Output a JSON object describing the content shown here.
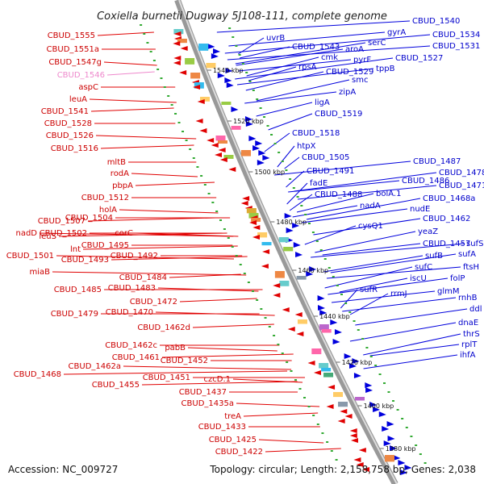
{
  "title": "Coxiella burnetii Dugway 5J108-111, complete genome",
  "footer": {
    "accession": "Accession: NC_009727",
    "summary": "Topology: circular; Length: 2,158,758 bp; Genes: 2,038"
  },
  "colors": {
    "forward": "#e00000",
    "reverse": "#0000dd",
    "backbone": "#999999",
    "dots": "#33aa33",
    "label_red": "#cc0000",
    "label_blue": "#0000cc",
    "label_pink": "#ee88cc"
  },
  "kbp_ticks": [
    "1540 kbp",
    "1520 kbp",
    "1500 kbp",
    "1480 kbp",
    "1460 kbp",
    "1440 kbp",
    "1420 kbp",
    "1400 kbp",
    "1380 kbp"
  ],
  "left_labels": [
    {
      "text": "CBUD_1555",
      "color": "red"
    },
    {
      "text": "CBUD_1551a",
      "color": "red"
    },
    {
      "text": "CBUD_1547g",
      "color": "red"
    },
    {
      "text": "CBUD_1546",
      "color": "pink"
    },
    {
      "text": "aspC",
      "color": "red"
    },
    {
      "text": "leuA",
      "color": "red"
    },
    {
      "text": "CBUD_1541",
      "color": "red"
    },
    {
      "text": "CBUD_1528",
      "color": "red"
    },
    {
      "text": "CBUD_1526",
      "color": "red"
    },
    {
      "text": "CBUD_1516",
      "color": "red"
    },
    {
      "text": "mltB",
      "color": "red"
    },
    {
      "text": "rodA",
      "color": "red"
    },
    {
      "text": "pbpA",
      "color": "red"
    },
    {
      "text": "CBUD_1512",
      "color": "red"
    },
    {
      "text": "holA",
      "color": "red"
    },
    {
      "text": "CBUD_1507",
      "color": "red"
    },
    {
      "text": "CBUD_1504",
      "color": "red"
    },
    {
      "text": "nadD",
      "color": "red"
    },
    {
      "text": "leuS",
      "color": "red"
    },
    {
      "text": "CBUD_1502",
      "color": "red"
    },
    {
      "text": "corC",
      "color": "red"
    },
    {
      "text": "lnt",
      "color": "red"
    },
    {
      "text": "CBUD_1495",
      "color": "red"
    },
    {
      "text": "CBUD_1501",
      "color": "red"
    },
    {
      "text": "CBUD_1493",
      "color": "red"
    },
    {
      "text": "CBUD_1492",
      "color": "red"
    },
    {
      "text": "miaB",
      "color": "red"
    },
    {
      "text": "CBUD_1484",
      "color": "red"
    },
    {
      "text": "CBUD_1485",
      "color": "red"
    },
    {
      "text": "CBUD_1483",
      "color": "red"
    },
    {
      "text": "CBUD_1472",
      "color": "red"
    },
    {
      "text": "CBUD_1479",
      "color": "red"
    },
    {
      "text": "CBUD_1470",
      "color": "red"
    },
    {
      "text": "CBUD_1462d",
      "color": "red"
    },
    {
      "text": "CBUD_1462c",
      "color": "red"
    },
    {
      "text": "pabB",
      "color": "red"
    },
    {
      "text": "CBUD_1461",
      "color": "red"
    },
    {
      "text": "CBUD_1452",
      "color": "red"
    },
    {
      "text": "CBUD_1462a",
      "color": "red"
    },
    {
      "text": "CBUD_1468",
      "color": "red"
    },
    {
      "text": "CBUD_1451",
      "color": "red"
    },
    {
      "text": "czcD.1",
      "color": "red"
    },
    {
      "text": "CBUD_1455",
      "color": "red"
    },
    {
      "text": "CBUD_1437",
      "color": "red"
    },
    {
      "text": "CBUD_1435a",
      "color": "red"
    },
    {
      "text": "treA",
      "color": "red"
    },
    {
      "text": "CBUD_1433",
      "color": "red"
    },
    {
      "text": "CBUD_1425",
      "color": "red"
    },
    {
      "text": "CBUD_1422",
      "color": "red"
    }
  ],
  "right_labels": [
    {
      "text": "CBUD_1540"
    },
    {
      "text": "gyrA"
    },
    {
      "text": "uvrB"
    },
    {
      "text": "CBUD_1534"
    },
    {
      "text": "serC"
    },
    {
      "text": "CBUD_1543"
    },
    {
      "text": "CBUD_1531"
    },
    {
      "text": "aroA"
    },
    {
      "text": "cmk"
    },
    {
      "text": "CBUD_1527"
    },
    {
      "text": "pyrF"
    },
    {
      "text": "rpsA"
    },
    {
      "text": "tppB"
    },
    {
      "text": "CBUD_1529"
    },
    {
      "text": "smc"
    },
    {
      "text": "zipA"
    },
    {
      "text": "ligA"
    },
    {
      "text": "CBUD_1519"
    },
    {
      "text": "CBUD_1518"
    },
    {
      "text": "htpX"
    },
    {
      "text": "CBUD_1505"
    },
    {
      "text": "CBUD_1487"
    },
    {
      "text": "CBUD_1491"
    },
    {
      "text": "CBUD_1478"
    },
    {
      "text": "fadE"
    },
    {
      "text": "CBUD_1486"
    },
    {
      "text": "CBUD_1471"
    },
    {
      "text": "CBUD_1488"
    },
    {
      "text": "bolA.1"
    },
    {
      "text": "CBUD_1468a"
    },
    {
      "text": "nadA"
    },
    {
      "text": "nudE"
    },
    {
      "text": "CBUD_1462"
    },
    {
      "text": "cysQ1"
    },
    {
      "text": "yeaZ"
    },
    {
      "text": "CBUD_1457"
    },
    {
      "text": "sufS"
    },
    {
      "text": "sufB"
    },
    {
      "text": "sufA"
    },
    {
      "text": "sufC"
    },
    {
      "text": "ftsH"
    },
    {
      "text": "iscU"
    },
    {
      "text": "folP"
    },
    {
      "text": "sufR"
    },
    {
      "text": "rrmJ"
    },
    {
      "text": "glmM"
    },
    {
      "text": "rnhB"
    },
    {
      "text": "ddl"
    },
    {
      "text": "dnaE"
    },
    {
      "text": "thrS"
    },
    {
      "text": "rplT"
    },
    {
      "text": "ihfA"
    }
  ]
}
